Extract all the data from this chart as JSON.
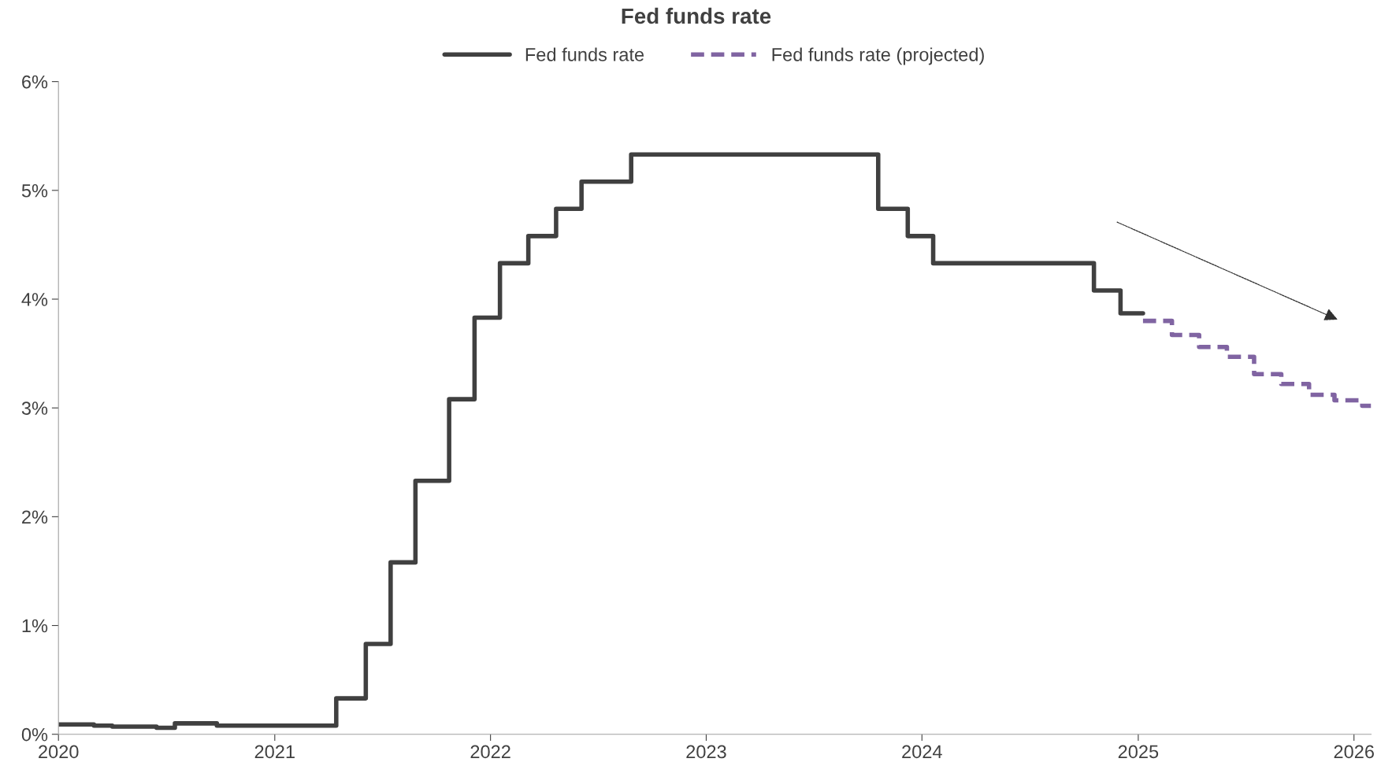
{
  "chart_data": {
    "type": "step",
    "title": "Fed funds rate",
    "legend": "top",
    "xlim": [
      "2020-01-01",
      "2026-01-30"
    ],
    "xticks": [
      {
        "value": "2020-01-01",
        "label": "2020"
      },
      {
        "value": "2021-01-01",
        "label": "2021"
      },
      {
        "value": "2022-01-01",
        "label": "2022"
      },
      {
        "value": "2023-01-01",
        "label": "2023"
      },
      {
        "value": "2024-01-01",
        "label": "2024"
      },
      {
        "value": "2025-01-01",
        "label": "2025"
      },
      {
        "value": "2026-01-01",
        "label": "2026"
      }
    ],
    "ylim": [
      0,
      6
    ],
    "yticks": [
      {
        "value": 0,
        "label": "0%"
      },
      {
        "value": 1,
        "label": "1%"
      },
      {
        "value": 2,
        "label": "2%"
      },
      {
        "value": 3,
        "label": "3%"
      },
      {
        "value": 4,
        "label": "4%"
      },
      {
        "value": 5,
        "label": "5%"
      },
      {
        "value": 6,
        "label": "6%"
      }
    ],
    "grid": false,
    "series": [
      {
        "name": "Fed funds rate",
        "color": "#404040",
        "line_style": "solid",
        "x": [
          "2020-01-01",
          "2020-03-01",
          "2020-04-01",
          "2020-06-15",
          "2020-07-16",
          "2020-09-25",
          "2021-04-15",
          "2021-06-04",
          "2021-07-16",
          "2021-08-27",
          "2021-10-23",
          "2021-12-05",
          "2022-01-17",
          "2022-03-06",
          "2022-04-22",
          "2022-06-04",
          "2022-08-27",
          "2023-10-19",
          "2023-12-08",
          "2024-01-20",
          "2024-10-18",
          "2024-12-02",
          "2025-01-09"
        ],
        "values": [
          0.09,
          0.08,
          0.07,
          0.06,
          0.1,
          0.08,
          0.33,
          0.83,
          1.58,
          2.33,
          3.08,
          3.83,
          4.33,
          4.58,
          4.83,
          5.08,
          5.33,
          4.83,
          4.58,
          4.33,
          4.08,
          3.87,
          3.87
        ]
      },
      {
        "name": "Fed funds rate (projected)",
        "color": "#8064a2",
        "line_style": "dashed",
        "x": [
          "2025-01-09",
          "2025-02-27",
          "2025-04-14",
          "2025-05-31",
          "2025-07-16",
          "2025-08-31",
          "2025-10-17",
          "2025-11-29",
          "2026-01-15",
          "2026-01-30"
        ],
        "values": [
          3.8,
          3.67,
          3.56,
          3.47,
          3.31,
          3.22,
          3.12,
          3.07,
          3.02,
          3.02
        ]
      }
    ]
  }
}
